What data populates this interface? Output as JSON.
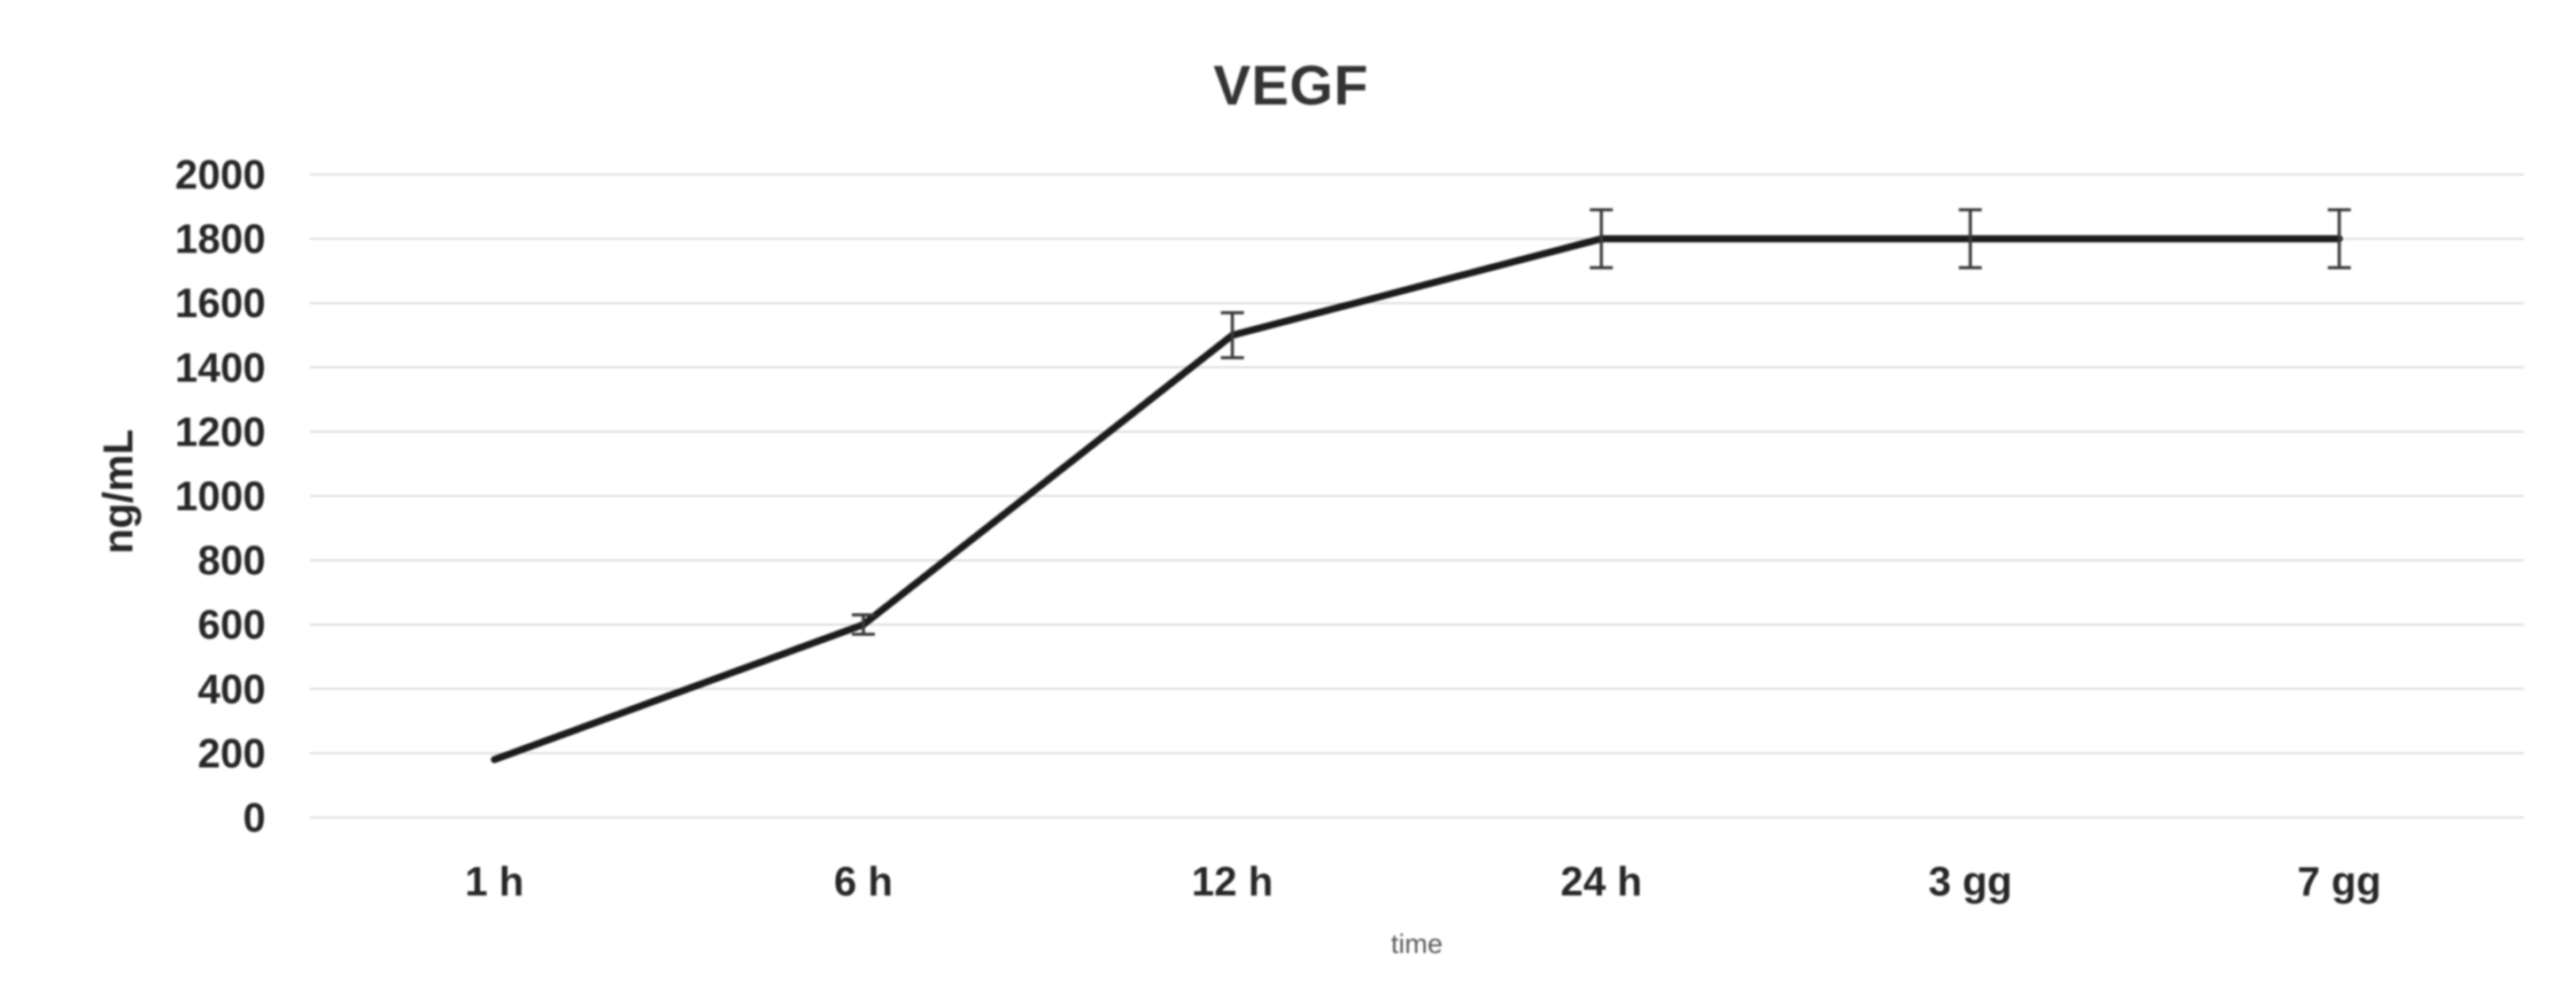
{
  "chart_data": {
    "type": "line",
    "title": "VEGF",
    "ylabel": "ng/mL",
    "xlabel": "time",
    "categories": [
      "1 h",
      "6 h",
      "12 h",
      "24 h",
      "3 gg",
      "7 gg"
    ],
    "series": [
      {
        "name": "VEGF",
        "values": [
          180,
          600,
          1500,
          1800,
          1800,
          1800
        ],
        "error_plus_minus": [
          0,
          30,
          70,
          90,
          90,
          90
        ]
      }
    ],
    "ylim": [
      0,
      2000
    ],
    "yticks": [
      0,
      200,
      400,
      600,
      800,
      1000,
      1200,
      1400,
      1600,
      1800,
      2000
    ],
    "grid": "horizontal",
    "legend": "none",
    "colors": {
      "line": "#1b1b1b",
      "error_bar": "#3a3a3a",
      "gridline": "#d9d9d9",
      "tick_text": "#262626",
      "title_text": "#333333",
      "xlabel_text": "#595959",
      "background": "#ffffff"
    }
  }
}
